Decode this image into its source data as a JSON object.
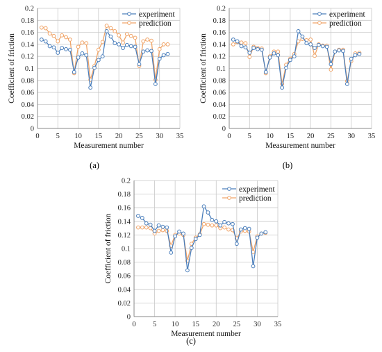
{
  "colors": {
    "experiment": "#4a7ebb",
    "prediction": "#f0a468",
    "grid": "#c8c8c8",
    "axis": "#888888"
  },
  "chart_data": [
    {
      "type": "line",
      "panel_label": "(a)",
      "xlabel": "Measurement number",
      "ylabel": "Coefficient of friction",
      "xlim": [
        0,
        35
      ],
      "ylim": [
        0,
        0.2
      ],
      "xticks": [
        "0",
        "5",
        "10",
        "15",
        "20",
        "25",
        "30",
        "35"
      ],
      "yticks": [
        "0",
        "0.02",
        "0.04",
        "0.06",
        "0.08",
        "0.1",
        "0.12",
        "0.14",
        "0.16",
        "0.18",
        "0.2"
      ],
      "grid": true,
      "legend": "top-right",
      "x": [
        1,
        2,
        3,
        4,
        5,
        6,
        7,
        8,
        9,
        10,
        11,
        12,
        13,
        14,
        15,
        16,
        17,
        18,
        19,
        20,
        21,
        22,
        23,
        24,
        25,
        26,
        27,
        28,
        29,
        30,
        31,
        32
      ],
      "series": [
        {
          "name": "experiment",
          "values": [
            0.148,
            0.145,
            0.137,
            0.135,
            0.126,
            0.134,
            0.132,
            0.131,
            0.094,
            0.118,
            0.125,
            0.122,
            0.068,
            0.101,
            0.114,
            0.12,
            0.162,
            0.153,
            0.142,
            0.14,
            0.134,
            0.139,
            0.137,
            0.136,
            0.107,
            0.128,
            0.13,
            0.129,
            0.074,
            0.116,
            0.122,
            0.124
          ]
        },
        {
          "name": "prediction",
          "values": [
            0.168,
            0.167,
            0.158,
            0.154,
            0.145,
            0.155,
            0.152,
            0.148,
            0.092,
            0.136,
            0.143,
            0.142,
            0.081,
            0.104,
            0.131,
            0.144,
            0.171,
            0.167,
            0.162,
            0.155,
            0.143,
            0.157,
            0.154,
            0.151,
            0.104,
            0.145,
            0.148,
            0.146,
            0.081,
            0.132,
            0.14,
            0.14
          ]
        }
      ]
    },
    {
      "type": "line",
      "panel_label": "(b)",
      "xlabel": "Measurement number",
      "ylabel": "Coefficient of friction",
      "xlim": [
        0,
        35
      ],
      "ylim": [
        0,
        0.2
      ],
      "xticks": [
        "0",
        "5",
        "10",
        "15",
        "20",
        "25",
        "30",
        "35"
      ],
      "yticks": [
        "0",
        "0.02",
        "0.04",
        "0.06",
        "0.08",
        "0.1",
        "0.12",
        "0.14",
        "0.16",
        "0.18",
        "0.2"
      ],
      "grid": true,
      "legend": "top-right",
      "x": [
        1,
        2,
        3,
        4,
        5,
        6,
        7,
        8,
        9,
        10,
        11,
        12,
        13,
        14,
        15,
        16,
        17,
        18,
        19,
        20,
        21,
        22,
        23,
        24,
        25,
        26,
        27,
        28,
        29,
        30,
        31,
        32
      ],
      "series": [
        {
          "name": "experiment",
          "values": [
            0.148,
            0.145,
            0.137,
            0.135,
            0.126,
            0.134,
            0.132,
            0.131,
            0.094,
            0.118,
            0.125,
            0.122,
            0.068,
            0.101,
            0.114,
            0.12,
            0.162,
            0.153,
            0.142,
            0.14,
            0.134,
            0.139,
            0.137,
            0.136,
            0.107,
            0.128,
            0.13,
            0.129,
            0.074,
            0.116,
            0.122,
            0.124
          ]
        },
        {
          "name": "prediction",
          "values": [
            0.14,
            0.144,
            0.143,
            0.142,
            0.119,
            0.136,
            0.134,
            0.133,
            0.092,
            0.12,
            0.128,
            0.128,
            0.074,
            0.106,
            0.116,
            0.124,
            0.145,
            0.149,
            0.147,
            0.148,
            0.121,
            0.14,
            0.138,
            0.138,
            0.098,
            0.128,
            0.131,
            0.131,
            0.079,
            0.112,
            0.125,
            0.126
          ]
        }
      ]
    },
    {
      "type": "line",
      "panel_label": "(c)",
      "xlabel": "Measurement number",
      "ylabel": "Coefficient of friction",
      "xlim": [
        0,
        35
      ],
      "ylim": [
        0,
        0.2
      ],
      "xticks": [
        "0",
        "5",
        "10",
        "15",
        "20",
        "25",
        "30",
        "35"
      ],
      "yticks": [
        "0",
        "0.02",
        "0.04",
        "0.06",
        "0.08",
        "0.1",
        "0.12",
        "0.14",
        "0.16",
        "0.18",
        "0.2"
      ],
      "grid": true,
      "legend": "top-right",
      "x": [
        1,
        2,
        3,
        4,
        5,
        6,
        7,
        8,
        9,
        10,
        11,
        12,
        13,
        14,
        15,
        16,
        17,
        18,
        19,
        20,
        21,
        22,
        23,
        24,
        25,
        26,
        27,
        28,
        29,
        30,
        31,
        32
      ],
      "series": [
        {
          "name": "experiment",
          "values": [
            0.148,
            0.145,
            0.137,
            0.135,
            0.126,
            0.134,
            0.132,
            0.131,
            0.094,
            0.118,
            0.125,
            0.122,
            0.068,
            0.101,
            0.114,
            0.12,
            0.162,
            0.153,
            0.142,
            0.14,
            0.134,
            0.139,
            0.137,
            0.136,
            0.107,
            0.128,
            0.13,
            0.129,
            0.074,
            0.116,
            0.122,
            0.124
          ]
        },
        {
          "name": "prediction",
          "values": [
            0.131,
            0.131,
            0.131,
            0.13,
            0.122,
            0.126,
            0.127,
            0.126,
            0.104,
            0.12,
            0.122,
            0.12,
            0.082,
            0.107,
            0.116,
            0.121,
            0.136,
            0.135,
            0.134,
            0.134,
            0.13,
            0.131,
            0.128,
            0.127,
            0.115,
            0.125,
            0.126,
            0.125,
            0.095,
            0.118,
            0.122,
            0.123
          ]
        }
      ]
    }
  ]
}
